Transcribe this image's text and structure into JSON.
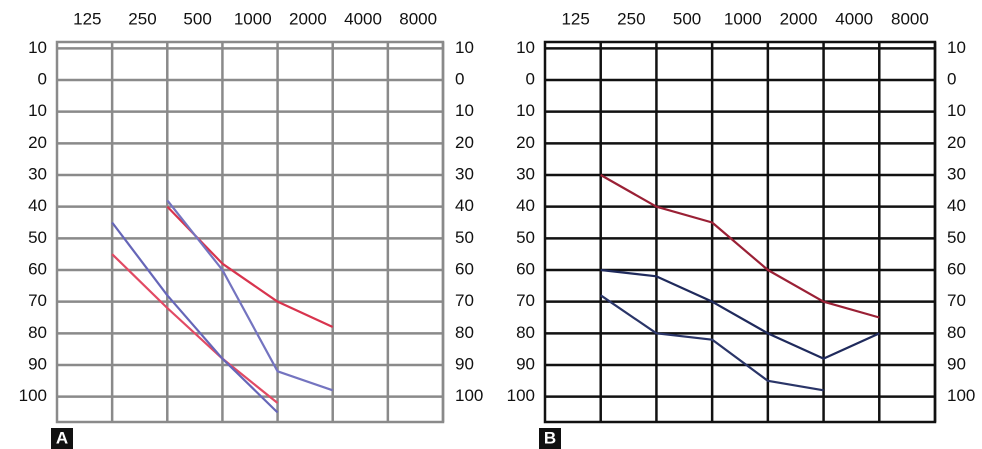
{
  "chart_data": [
    {
      "type": "line",
      "panel_label": "A",
      "grid_color": "#8a8a8a",
      "x": [
        125,
        250,
        500,
        1000,
        2000,
        4000,
        8000
      ],
      "xlim": [
        62.5,
        8000
      ],
      "xticks": [
        125,
        250,
        500,
        1000,
        2000,
        4000,
        8000
      ],
      "log_x": true,
      "ylim": [
        -12,
        108
      ],
      "yticks": [
        {
          "value": -10,
          "label": "10"
        },
        0,
        10,
        20,
        30,
        40,
        50,
        60,
        70,
        80,
        90,
        100
      ],
      "y_inverted": true,
      "series": [
        {
          "color": "#e24a64",
          "values": [
            55,
            72,
            88,
            102,
            null,
            null,
            null
          ]
        },
        {
          "color": "#d8344e",
          "values": [
            null,
            40,
            58,
            70,
            78,
            null,
            null
          ]
        },
        {
          "color": "#6666b8",
          "values": [
            45,
            68,
            88,
            105,
            null,
            null,
            null
          ]
        },
        {
          "color": "#7474c0",
          "values": [
            null,
            38,
            60,
            92,
            98,
            null,
            null
          ]
        }
      ]
    },
    {
      "type": "line",
      "panel_label": "B",
      "grid_color": "#111111",
      "x": [
        125,
        250,
        500,
        1000,
        2000,
        4000,
        8000
      ],
      "xlim": [
        62.5,
        8000
      ],
      "xticks": [
        125,
        250,
        500,
        1000,
        2000,
        4000,
        8000
      ],
      "log_x": true,
      "ylim": [
        -12,
        108
      ],
      "yticks": [
        {
          "value": -10,
          "label": "10"
        },
        0,
        10,
        20,
        30,
        40,
        50,
        60,
        70,
        80,
        90,
        100
      ],
      "y_inverted": true,
      "series": [
        {
          "color": "#9a2035",
          "values": [
            30,
            40,
            45,
            60,
            70,
            75,
            null
          ]
        },
        {
          "color": "#1f2a5c",
          "values": [
            60,
            62,
            70,
            80,
            88,
            80,
            null
          ]
        },
        {
          "color": "#2a3568",
          "values": [
            68,
            80,
            82,
            95,
            98,
            null,
            null
          ]
        }
      ]
    }
  ]
}
